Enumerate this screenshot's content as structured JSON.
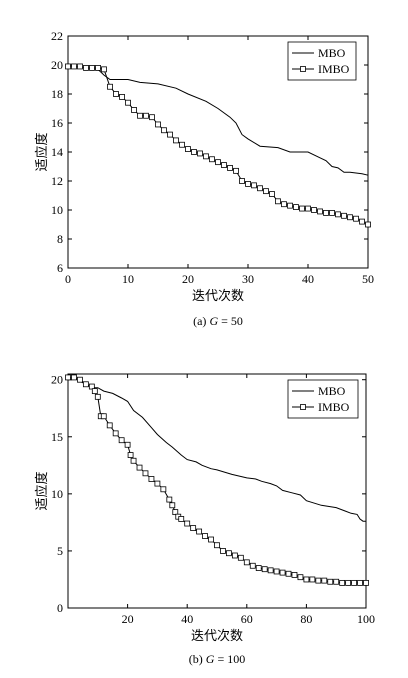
{
  "chart_data": [
    {
      "type": "line",
      "caption": "(a) G = 50",
      "caption_parts": [
        "(a) ",
        "G",
        " = 50"
      ],
      "xlabel": "迭代次数",
      "ylabel": "适应度",
      "xlim": [
        0,
        50
      ],
      "ylim": [
        6,
        22
      ],
      "xticks": [
        0,
        10,
        20,
        30,
        40,
        50
      ],
      "yticks": [
        6,
        8,
        10,
        12,
        14,
        16,
        18,
        20,
        22
      ],
      "grid": false,
      "legend_position": "top-right",
      "series": [
        {
          "name": "MBO",
          "marker": "none",
          "x": [
            0,
            1,
            3,
            5,
            6,
            7,
            10,
            12,
            15,
            18,
            20,
            23,
            25,
            26,
            27,
            28,
            29,
            30,
            32,
            35,
            37,
            40,
            42,
            43,
            44,
            45,
            46,
            47,
            49,
            50
          ],
          "y": [
            20.0,
            19.9,
            19.8,
            19.7,
            19.3,
            19.0,
            19.0,
            18.8,
            18.7,
            18.4,
            18.0,
            17.5,
            17.0,
            16.7,
            16.4,
            16.0,
            15.2,
            14.9,
            14.4,
            14.3,
            14.0,
            14.0,
            13.6,
            13.4,
            13.0,
            12.9,
            12.6,
            12.6,
            12.5,
            12.4
          ]
        },
        {
          "name": "IMBO",
          "marker": "square",
          "x": [
            0,
            1,
            2,
            3,
            4,
            5,
            6,
            7,
            8,
            9,
            10,
            11,
            12,
            13,
            14,
            15,
            16,
            17,
            18,
            19,
            20,
            21,
            22,
            23,
            24,
            25,
            26,
            27,
            28,
            29,
            30,
            31,
            32,
            33,
            34,
            35,
            36,
            37,
            38,
            39,
            40,
            41,
            42,
            43,
            44,
            45,
            46,
            47,
            48,
            49,
            50
          ],
          "y": [
            19.9,
            19.9,
            19.9,
            19.8,
            19.8,
            19.8,
            19.7,
            18.5,
            18.0,
            17.8,
            17.4,
            16.9,
            16.5,
            16.5,
            16.4,
            15.9,
            15.5,
            15.2,
            14.8,
            14.5,
            14.2,
            14.0,
            13.9,
            13.7,
            13.5,
            13.3,
            13.1,
            12.9,
            12.7,
            12.0,
            11.8,
            11.7,
            11.5,
            11.3,
            11.1,
            10.6,
            10.4,
            10.3,
            10.2,
            10.1,
            10.1,
            10.0,
            9.9,
            9.8,
            9.8,
            9.7,
            9.6,
            9.5,
            9.4,
            9.2,
            9.0
          ]
        }
      ]
    },
    {
      "type": "line",
      "caption": "(b) G = 100",
      "caption_parts": [
        "(b) ",
        "G",
        " = 100"
      ],
      "xlabel": "迭代次数",
      "ylabel": "适应度",
      "xlim": [
        0,
        100
      ],
      "ylim": [
        0,
        20.5
      ],
      "xticks": [
        20,
        40,
        60,
        80,
        100
      ],
      "yticks": [
        0,
        5,
        10,
        15,
        20
      ],
      "grid": false,
      "legend_position": "top-right",
      "series": [
        {
          "name": "MBO",
          "marker": "none",
          "x": [
            0,
            3,
            6,
            8,
            10,
            12,
            15,
            18,
            20,
            22,
            25,
            28,
            30,
            33,
            35,
            38,
            40,
            43,
            45,
            48,
            50,
            55,
            60,
            63,
            65,
            68,
            70,
            72,
            75,
            78,
            80,
            85,
            90,
            93,
            95,
            97,
            98,
            99,
            100
          ],
          "y": [
            20.2,
            20.0,
            19.6,
            19.3,
            19.3,
            19.0,
            18.8,
            18.4,
            18.1,
            17.3,
            16.7,
            15.8,
            15.2,
            14.5,
            14.1,
            13.4,
            13.0,
            12.8,
            12.5,
            12.2,
            12.1,
            11.7,
            11.4,
            11.3,
            11.1,
            10.9,
            10.7,
            10.3,
            10.1,
            9.9,
            9.4,
            9.0,
            8.8,
            8.5,
            8.3,
            8.2,
            7.8,
            7.6,
            7.6
          ]
        },
        {
          "name": "IMBO",
          "marker": "square",
          "x": [
            0,
            2,
            4,
            6,
            8,
            9,
            10,
            11,
            12,
            14,
            16,
            18,
            20,
            21,
            22,
            24,
            26,
            28,
            30,
            32,
            34,
            35,
            36,
            37,
            38,
            40,
            42,
            44,
            46,
            48,
            50,
            52,
            54,
            56,
            58,
            60,
            62,
            64,
            66,
            68,
            70,
            72,
            74,
            76,
            78,
            80,
            82,
            84,
            86,
            88,
            90,
            92,
            94,
            96,
            98,
            100
          ],
          "y": [
            20.2,
            20.2,
            20.0,
            19.6,
            19.4,
            19.0,
            18.5,
            16.8,
            16.8,
            16.0,
            15.3,
            14.7,
            14.3,
            13.4,
            12.9,
            12.3,
            11.8,
            11.3,
            10.9,
            10.4,
            9.5,
            9.0,
            8.4,
            8.0,
            7.8,
            7.4,
            7.0,
            6.7,
            6.3,
            6.0,
            5.5,
            5.0,
            4.8,
            4.6,
            4.4,
            4.0,
            3.7,
            3.5,
            3.4,
            3.3,
            3.2,
            3.1,
            3.0,
            2.9,
            2.7,
            2.5,
            2.5,
            2.4,
            2.4,
            2.3,
            2.3,
            2.2,
            2.2,
            2.2,
            2.2,
            2.2
          ]
        }
      ]
    }
  ]
}
